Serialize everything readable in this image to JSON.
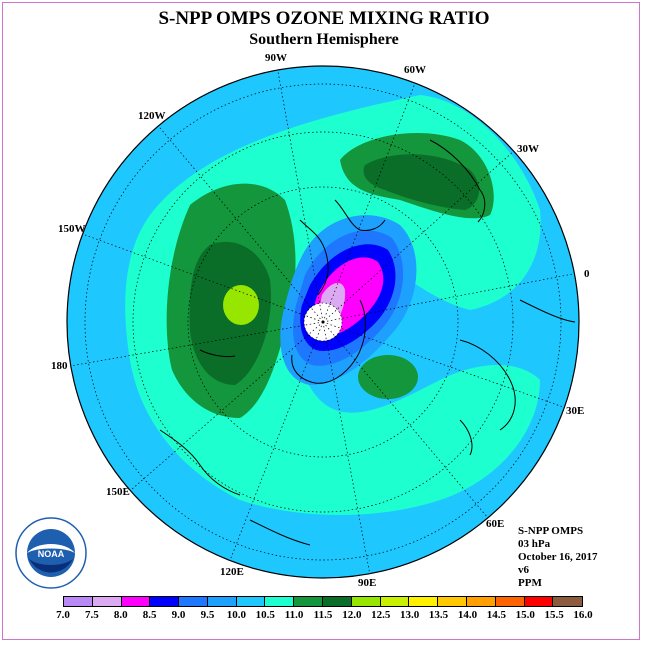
{
  "title": "S-NPP OMPS OZONE MIXING RATIO",
  "subtitle": "Southern Hemisphere",
  "longitude_labels": {
    "w90": "90W",
    "w60": "60W",
    "w120": "120W",
    "w30": "30W",
    "w150": "150W",
    "zero": "0",
    "d180": "180",
    "e30": "30E",
    "e150": "150E",
    "e60": "60E",
    "e120": "120E",
    "e90": "90E"
  },
  "info": {
    "instrument": "S-NPP OMPS",
    "level": "03 hPa",
    "date": "October 16, 2017",
    "version": "v6",
    "units": "PPM"
  },
  "colorbar": {
    "colors": [
      "#b98af5",
      "#dcaaf2",
      "#ff00ff",
      "#0000ff",
      "#1e78ff",
      "#1ea0ff",
      "#1ec8ff",
      "#1effd0",
      "#14963c",
      "#0a6e28",
      "#96e600",
      "#c8f000",
      "#fff000",
      "#ffc800",
      "#ffa000",
      "#ff6400",
      "#ff0000",
      "#8c5a3c"
    ],
    "ticks": [
      "7.0",
      "7.5",
      "8.0",
      "8.5",
      "9.0",
      "9.5",
      "10.0",
      "10.5",
      "11.0",
      "11.5",
      "12.0",
      "12.5",
      "13.0",
      "13.5",
      "14.0",
      "14.5",
      "15.0",
      "15.5",
      "16.0"
    ]
  },
  "logo": {
    "text": "NOAA",
    "ring_text": "NATIONAL OCEANIC AND ATMOSPHERIC ADMINISTRATION · U.S. DEPARTMENT OF COMMERCE"
  }
}
